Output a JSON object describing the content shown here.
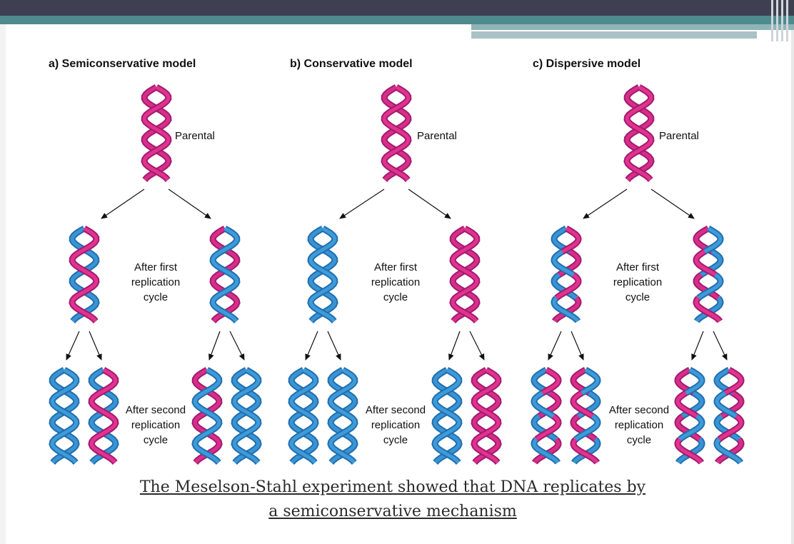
{
  "colors": {
    "parental_strand": "#e0338f",
    "parental_strand_dark": "#a31a6e",
    "new_strand": "#3f9ad8",
    "new_strand_dark": "#1f6fb0",
    "header_dark": "#3f3f52",
    "header_teal": "#4e8b8f"
  },
  "models": [
    {
      "title": "a) Semiconservative model",
      "parental_label": "Parental",
      "first_label": "After first\nreplication\ncycle",
      "second_label": "After second\nreplication\ncycle"
    },
    {
      "title": "b) Conservative model",
      "parental_label": "Parental",
      "first_label": "After first\nreplication\ncycle",
      "second_label": "After second\nreplication\ncycle"
    },
    {
      "title": "c) Dispersive model",
      "parental_label": "Parental",
      "first_label": "After first\nreplication\ncycle",
      "second_label": "After second\nreplication\ncycle"
    }
  ],
  "caption": {
    "line1": "The Meselson-Stahl experiment showed that DNA replicates by",
    "line2": "a semiconservative mechanism"
  }
}
